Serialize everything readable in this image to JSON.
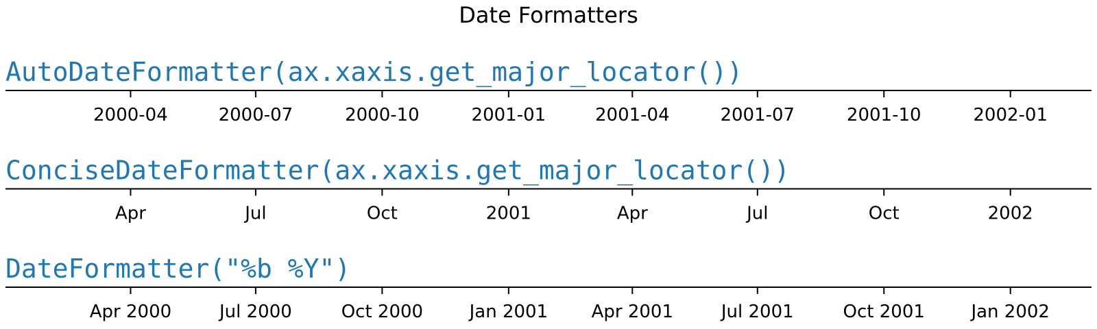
{
  "figure": {
    "title": "Date Formatters"
  },
  "chart_data": [
    {
      "type": "axis",
      "title": "AutoDateFormatter(ax.xaxis.get_major_locator())",
      "title_color": "#1f77b4",
      "xlim": [
        "2000-01-01",
        "2002-03-01"
      ],
      "ticks": [
        {
          "x": "2000-04-01",
          "label": "2000-04"
        },
        {
          "x": "2000-07-01",
          "label": "2000-07"
        },
        {
          "x": "2000-10-01",
          "label": "2000-10"
        },
        {
          "x": "2001-01-01",
          "label": "2001-01"
        },
        {
          "x": "2001-04-01",
          "label": "2001-04"
        },
        {
          "x": "2001-07-01",
          "label": "2001-07"
        },
        {
          "x": "2001-10-01",
          "label": "2001-10"
        },
        {
          "x": "2002-01-01",
          "label": "2002-01"
        }
      ],
      "grid": false
    },
    {
      "type": "axis",
      "title": "ConciseDateFormatter(ax.xaxis.get_major_locator())",
      "title_color": "#1f77b4",
      "xlim": [
        "2000-01-01",
        "2002-03-01"
      ],
      "ticks": [
        {
          "x": "2000-04-01",
          "label": "Apr"
        },
        {
          "x": "2000-07-01",
          "label": "Jul"
        },
        {
          "x": "2000-10-01",
          "label": "Oct"
        },
        {
          "x": "2001-01-01",
          "label": "2001"
        },
        {
          "x": "2001-04-01",
          "label": "Apr"
        },
        {
          "x": "2001-07-01",
          "label": "Jul"
        },
        {
          "x": "2001-10-01",
          "label": "Oct"
        },
        {
          "x": "2002-01-01",
          "label": "2002"
        }
      ],
      "grid": false
    },
    {
      "type": "axis",
      "title": "DateFormatter(\"%b %Y\")",
      "title_color": "#1f77b4",
      "xlim": [
        "2000-01-01",
        "2002-03-01"
      ],
      "ticks": [
        {
          "x": "2000-04-01",
          "label": "Apr 2000"
        },
        {
          "x": "2000-07-01",
          "label": "Jul 2000"
        },
        {
          "x": "2000-10-01",
          "label": "Oct 2000"
        },
        {
          "x": "2001-01-01",
          "label": "Jan 2001"
        },
        {
          "x": "2001-04-01",
          "label": "Apr 2001"
        },
        {
          "x": "2001-07-01",
          "label": "Jul 2001"
        },
        {
          "x": "2001-10-01",
          "label": "Oct 2001"
        },
        {
          "x": "2002-01-01",
          "label": "Jan 2002"
        }
      ],
      "grid": false
    }
  ]
}
